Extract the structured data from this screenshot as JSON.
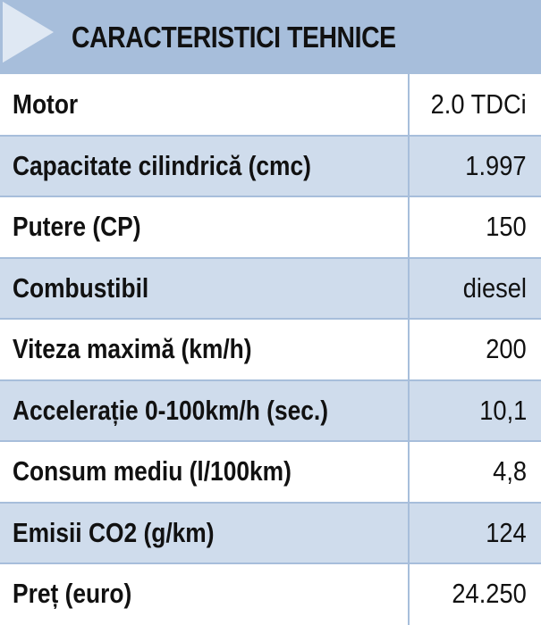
{
  "header": {
    "title": "CARACTERISTICI TEHNICE"
  },
  "colors": {
    "header_bg": "#a7bedb",
    "row_alt_bg": "#cfdcec",
    "text": "#111111"
  },
  "specs": [
    {
      "label": "Motor",
      "value": "2.0 TDCi"
    },
    {
      "label": "Capacitate cilindrică (cmc)",
      "value": "1.997"
    },
    {
      "label": "Putere (CP)",
      "value": "150"
    },
    {
      "label": "Combustibil",
      "value": "diesel"
    },
    {
      "label": "Viteza maximă (km/h)",
      "value": "200"
    },
    {
      "label": "Accelerație 0-100km/h (sec.)",
      "value": "10,1"
    },
    {
      "label": "Consum mediu (l/100km)",
      "value": "4,8"
    },
    {
      "label": "Emisii CO2 (g/km)",
      "value": "124"
    },
    {
      "label": "Preț (euro)",
      "value": "24.250"
    }
  ]
}
